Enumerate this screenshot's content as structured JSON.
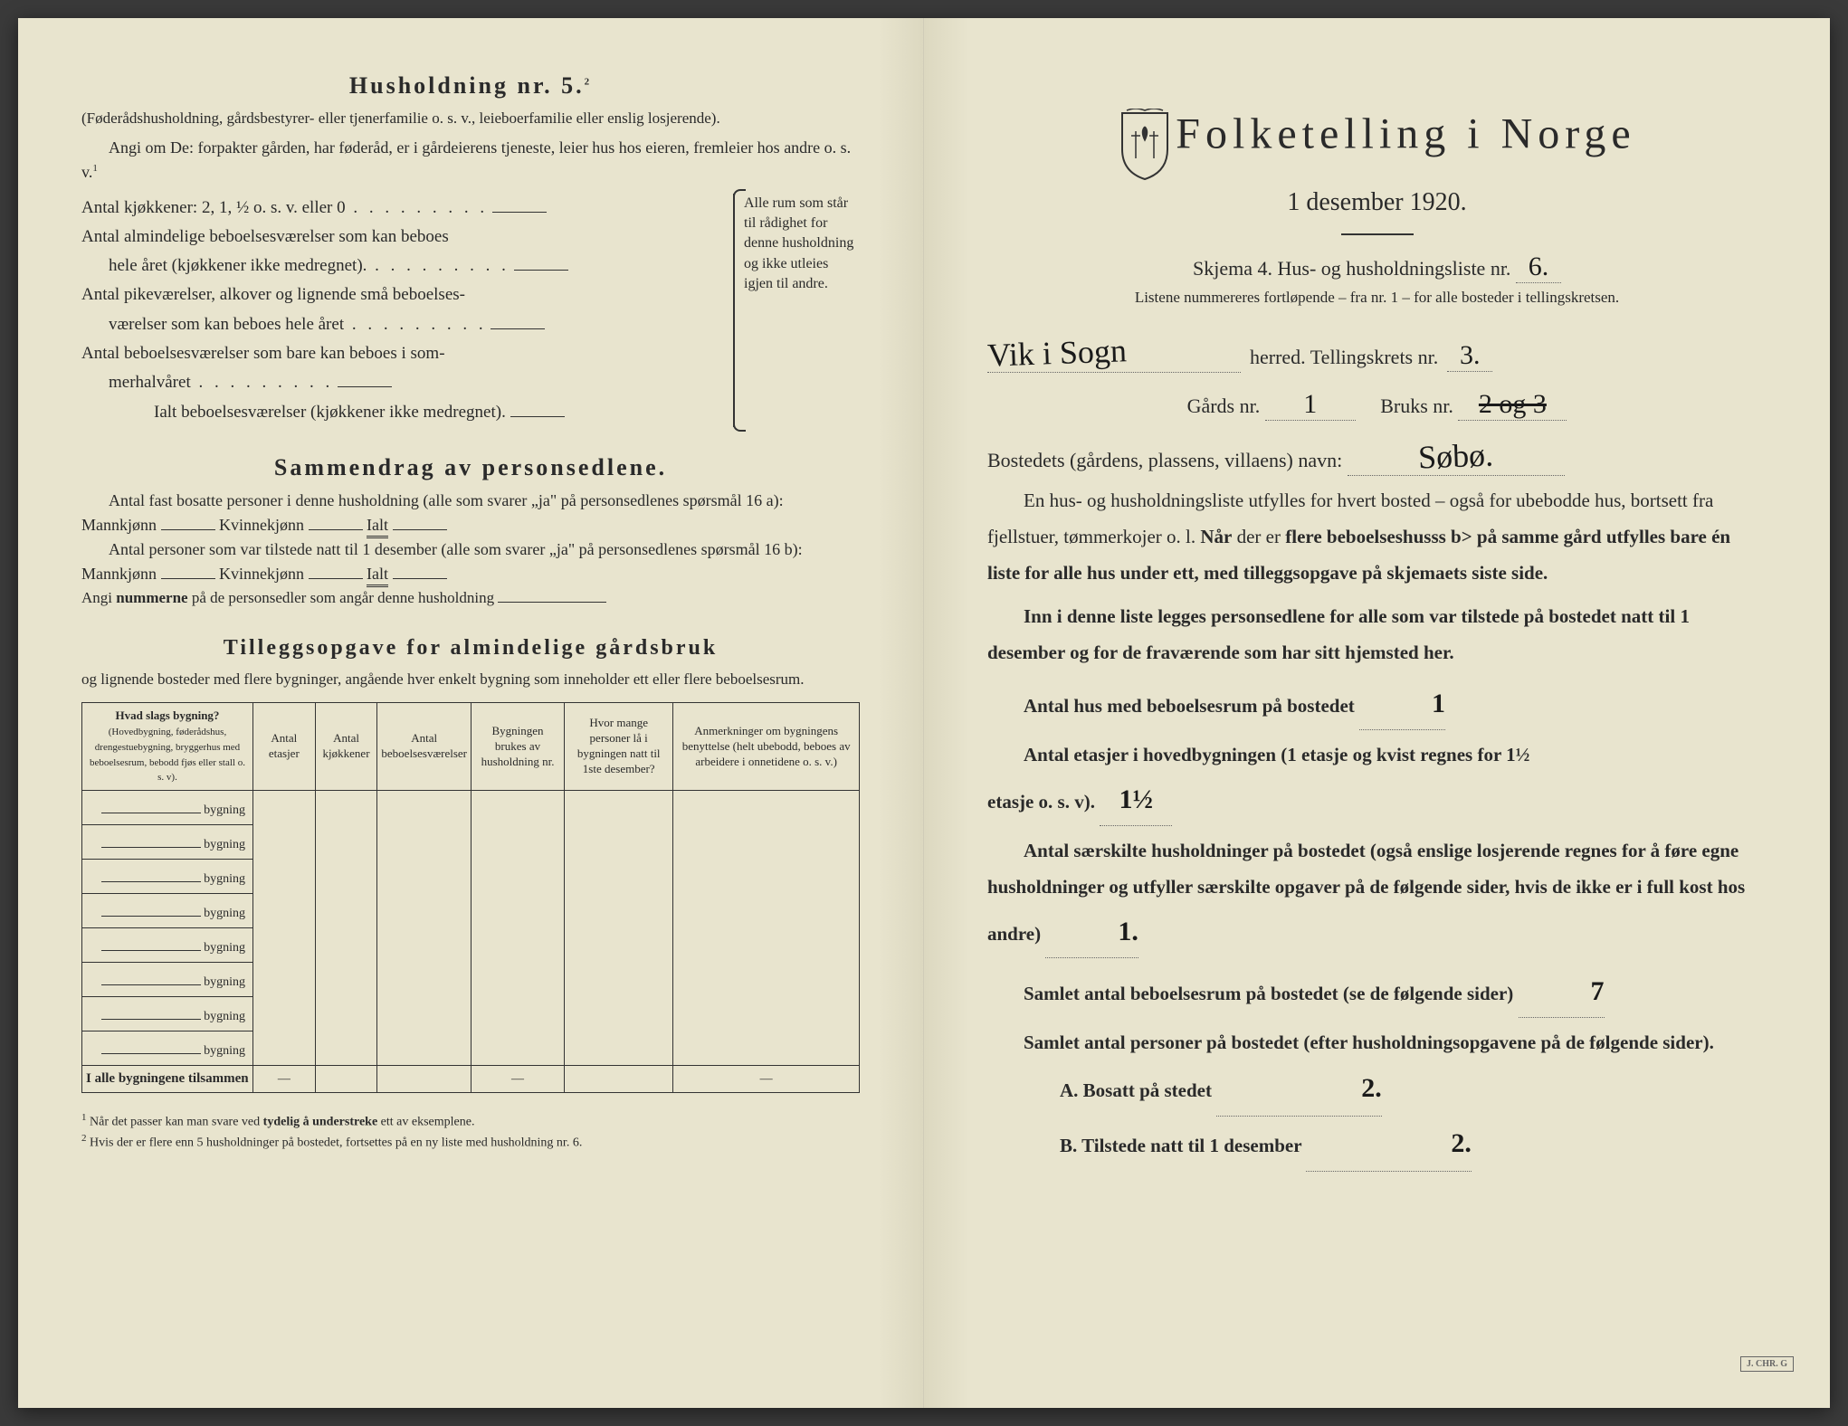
{
  "left": {
    "h5_title": "Husholdning nr. 5.",
    "h5_sup": "2",
    "h5_sub1": "(Føderådshusholdning, gårdsbestyrer- eller tjenerfamilie o. s. v., leieboerfamilie eller enslig losjerende).",
    "h5_sub2": "Angi om De: forpakter gården, har føderåd, er i gårdeierens tjeneste, leier hus hos eieren, fremleier hos andre o. s. v.",
    "h5_sup1": "1",
    "kitchen_line": "Antal kjøkkener: 2, 1, ½ o. s. v. eller 0",
    "room_line1a": "Antal almindelige beboelsesværelser som kan beboes",
    "room_line1b": "hele året (kjøkkener ikke medregnet).",
    "room_line2a": "Antal pikeværelser, alkover og lignende små beboelses-",
    "room_line2b": "værelser som kan beboes hele året",
    "room_line3a": "Antal beboelsesværelser som bare kan beboes i som-",
    "room_line3b": "merhalvåret",
    "room_total": "Ialt beboelsesværelser (kjøkkener ikke medregnet).",
    "bracket_text": "Alle rum som står til rådighet for denne husholdning og ikke utleies igjen til andre.",
    "summary_title": "Sammendrag av personsedlene.",
    "summary_l1": "Antal fast bosatte personer i denne husholdning (alle som svarer „ja\" på personsedlenes spørsmål 16 a): Mannkjønn",
    "summary_kv": "Kvinnekjønn",
    "summary_ialt": "Ialt",
    "summary_l2": "Antal personer som var tilstede natt til 1 desember (alle som svarer „ja\" på personsedlenes spørsmål 16 b): Mannkjønn",
    "summary_l3": "Angi nummerne på de personsedler som angår denne husholdning",
    "tillegg_title": "Tilleggsopgave for almindelige gårdsbruk",
    "tillegg_sub": "og lignende bosteder med flere bygninger, angående hver enkelt bygning som inneholder ett eller flere beboelsesrum.",
    "th1": "Hvad slags bygning?",
    "th1_sub": "(Hovedbygning, føderådshus, drengestuebygning, bryggerhus med beboelsesrum, bebodd fjøs eller stall o. s. v).",
    "th2": "Antal etasjer",
    "th3": "Antal kjøkkener",
    "th4": "Antal beboelsesværelser",
    "th5": "Bygningen brukes av husholdning nr.",
    "th6": "Hvor mange personer lå i bygningen natt til 1ste desember?",
    "th7": "Anmerkninger om bygningens benyttelse (helt ubebodd, beboes av arbeidere i onnetidene o. s. v.)",
    "bygning_label": "bygning",
    "total_row": "I alle bygningene tilsammen",
    "footnote1": "Når det passer kan man svare ved tydelig å understreke ett av eksemplene.",
    "footnote2": "Hvis der er flere enn 5 husholdninger på bostedet, fortsettes på en ny liste med husholdning nr. 6.",
    "fn_sup1": "1",
    "fn_sup2": "2"
  },
  "right": {
    "title": "Folketelling i Norge",
    "date": "1 desember 1920.",
    "skjema": "Skjema 4.  Hus- og husholdningsliste nr.",
    "skjema_val": "6.",
    "liste_note": "Listene nummereres fortløpende – fra nr. 1 – for alle bosteder i tellingskretsen.",
    "herred_val": "Vik i Sogn",
    "herred_label": "herred.  Tellingskrets nr.",
    "krets_val": "3.",
    "gard_label": "Gårds nr.",
    "gard_val": "1",
    "bruk_label": "Bruks nr.",
    "bruk_val": "2 og 3",
    "bosted_label": "Bostedets (gårdens, plassens, villaens) navn:",
    "bosted_val": "Søbø.",
    "para1": "En hus- og husholdningsliste utfylles for hvert bosted – også for ubebodde hus, bortsett fra fjellstuer, tømmerkojer o. l. Når der er flere beboelseshus på samme gård utfylles bare én liste for alle hus under ett, med tilleggsopgave på skjemaets siste side.",
    "para2": "Inn i denne liste legges personsedlene for alle som var tilstede på bostedet natt til 1 desember og for de fraværende som har sitt hjemsted her.",
    "q1": "Antal hus med beboelsesrum på bostedet",
    "q1_val": "1",
    "q2a": "Antal etasjer i hovedbygningen (1 etasje og kvist regnes for 1½",
    "q2b": "etasje o. s. v).",
    "q2_val": "1½",
    "q3": "Antal særskilte husholdninger på bostedet (også enslige losjerende regnes for å føre egne husholdninger og utfyller særskilte opgaver på de følgende sider, hvis de ikke er i full kost hos andre)",
    "q3_val": "1.",
    "q4": "Samlet antal beboelsesrum på bostedet (se de følgende sider)",
    "q4_val": "7",
    "q5": "Samlet antal personer på bostedet (efter husholdningsopgavene på de følgende sider).",
    "qA": "A.  Bosatt på stedet",
    "qA_val": "2.",
    "qB": "B.  Tilstede natt til 1 desember",
    "qB_val": "2."
  },
  "colors": {
    "paper": "#e8e4ce",
    "ink": "#2a2a2a",
    "handwriting": "#1a1a1a"
  }
}
